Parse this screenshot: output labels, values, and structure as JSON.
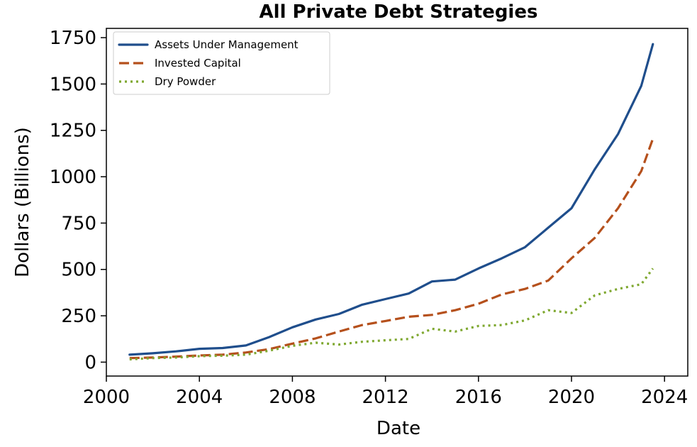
{
  "chart_data": {
    "type": "line",
    "title": "All Private Debt Strategies",
    "xlabel": "Date",
    "ylabel": "Dollars (Billions)",
    "xlim": [
      2000,
      2025
    ],
    "ylim": [
      -75,
      1800
    ],
    "xticks": [
      2000,
      2004,
      2008,
      2012,
      2016,
      2020,
      2024
    ],
    "yticks": [
      0,
      250,
      500,
      750,
      1000,
      1250,
      1500,
      1750
    ],
    "grid": false,
    "legend_position": "top-left",
    "series": [
      {
        "name": "Assets Under Management",
        "color": "#1f4e8c",
        "style": "solid",
        "x": [
          2001.0,
          2002.0,
          2003.0,
          2004.0,
          2005.0,
          2006.0,
          2007.0,
          2008.0,
          2009.0,
          2010.0,
          2011.0,
          2012.0,
          2013.0,
          2014.0,
          2015.0,
          2016.0,
          2017.0,
          2018.0,
          2019.0,
          2020.0,
          2021.0,
          2022.0,
          2023.0,
          2023.5
        ],
        "y": [
          40,
          48,
          58,
          72,
          76,
          90,
          135,
          188,
          230,
          260,
          310,
          340,
          370,
          435,
          445,
          505,
          560,
          620,
          725,
          830,
          1040,
          1230,
          1490,
          1715
        ]
      },
      {
        "name": "Invested Capital",
        "color": "#b5501c",
        "style": "dashed",
        "x": [
          2001.0,
          2002.0,
          2003.0,
          2004.0,
          2005.0,
          2006.0,
          2007.0,
          2008.0,
          2009.0,
          2010.0,
          2011.0,
          2012.0,
          2013.0,
          2014.0,
          2015.0,
          2016.0,
          2017.0,
          2018.0,
          2019.0,
          2020.0,
          2021.0,
          2022.0,
          2023.0,
          2023.5
        ],
        "y": [
          22,
          25,
          30,
          36,
          40,
          52,
          70,
          100,
          128,
          165,
          200,
          222,
          245,
          255,
          280,
          315,
          365,
          395,
          440,
          560,
          670,
          830,
          1030,
          1205
        ]
      },
      {
        "name": "Dry Powder",
        "color": "#7fa830",
        "style": "dotted",
        "x": [
          2001.0,
          2002.0,
          2003.0,
          2004.0,
          2005.0,
          2006.0,
          2007.0,
          2008.0,
          2009.0,
          2010.0,
          2011.0,
          2012.0,
          2013.0,
          2014.0,
          2015.0,
          2016.0,
          2017.0,
          2018.0,
          2019.0,
          2020.0,
          2021.0,
          2022.0,
          2023.0,
          2023.5
        ],
        "y": [
          15,
          22,
          25,
          32,
          35,
          40,
          62,
          88,
          105,
          95,
          110,
          118,
          125,
          180,
          165,
          195,
          200,
          225,
          280,
          265,
          360,
          395,
          420,
          505
        ]
      }
    ]
  }
}
